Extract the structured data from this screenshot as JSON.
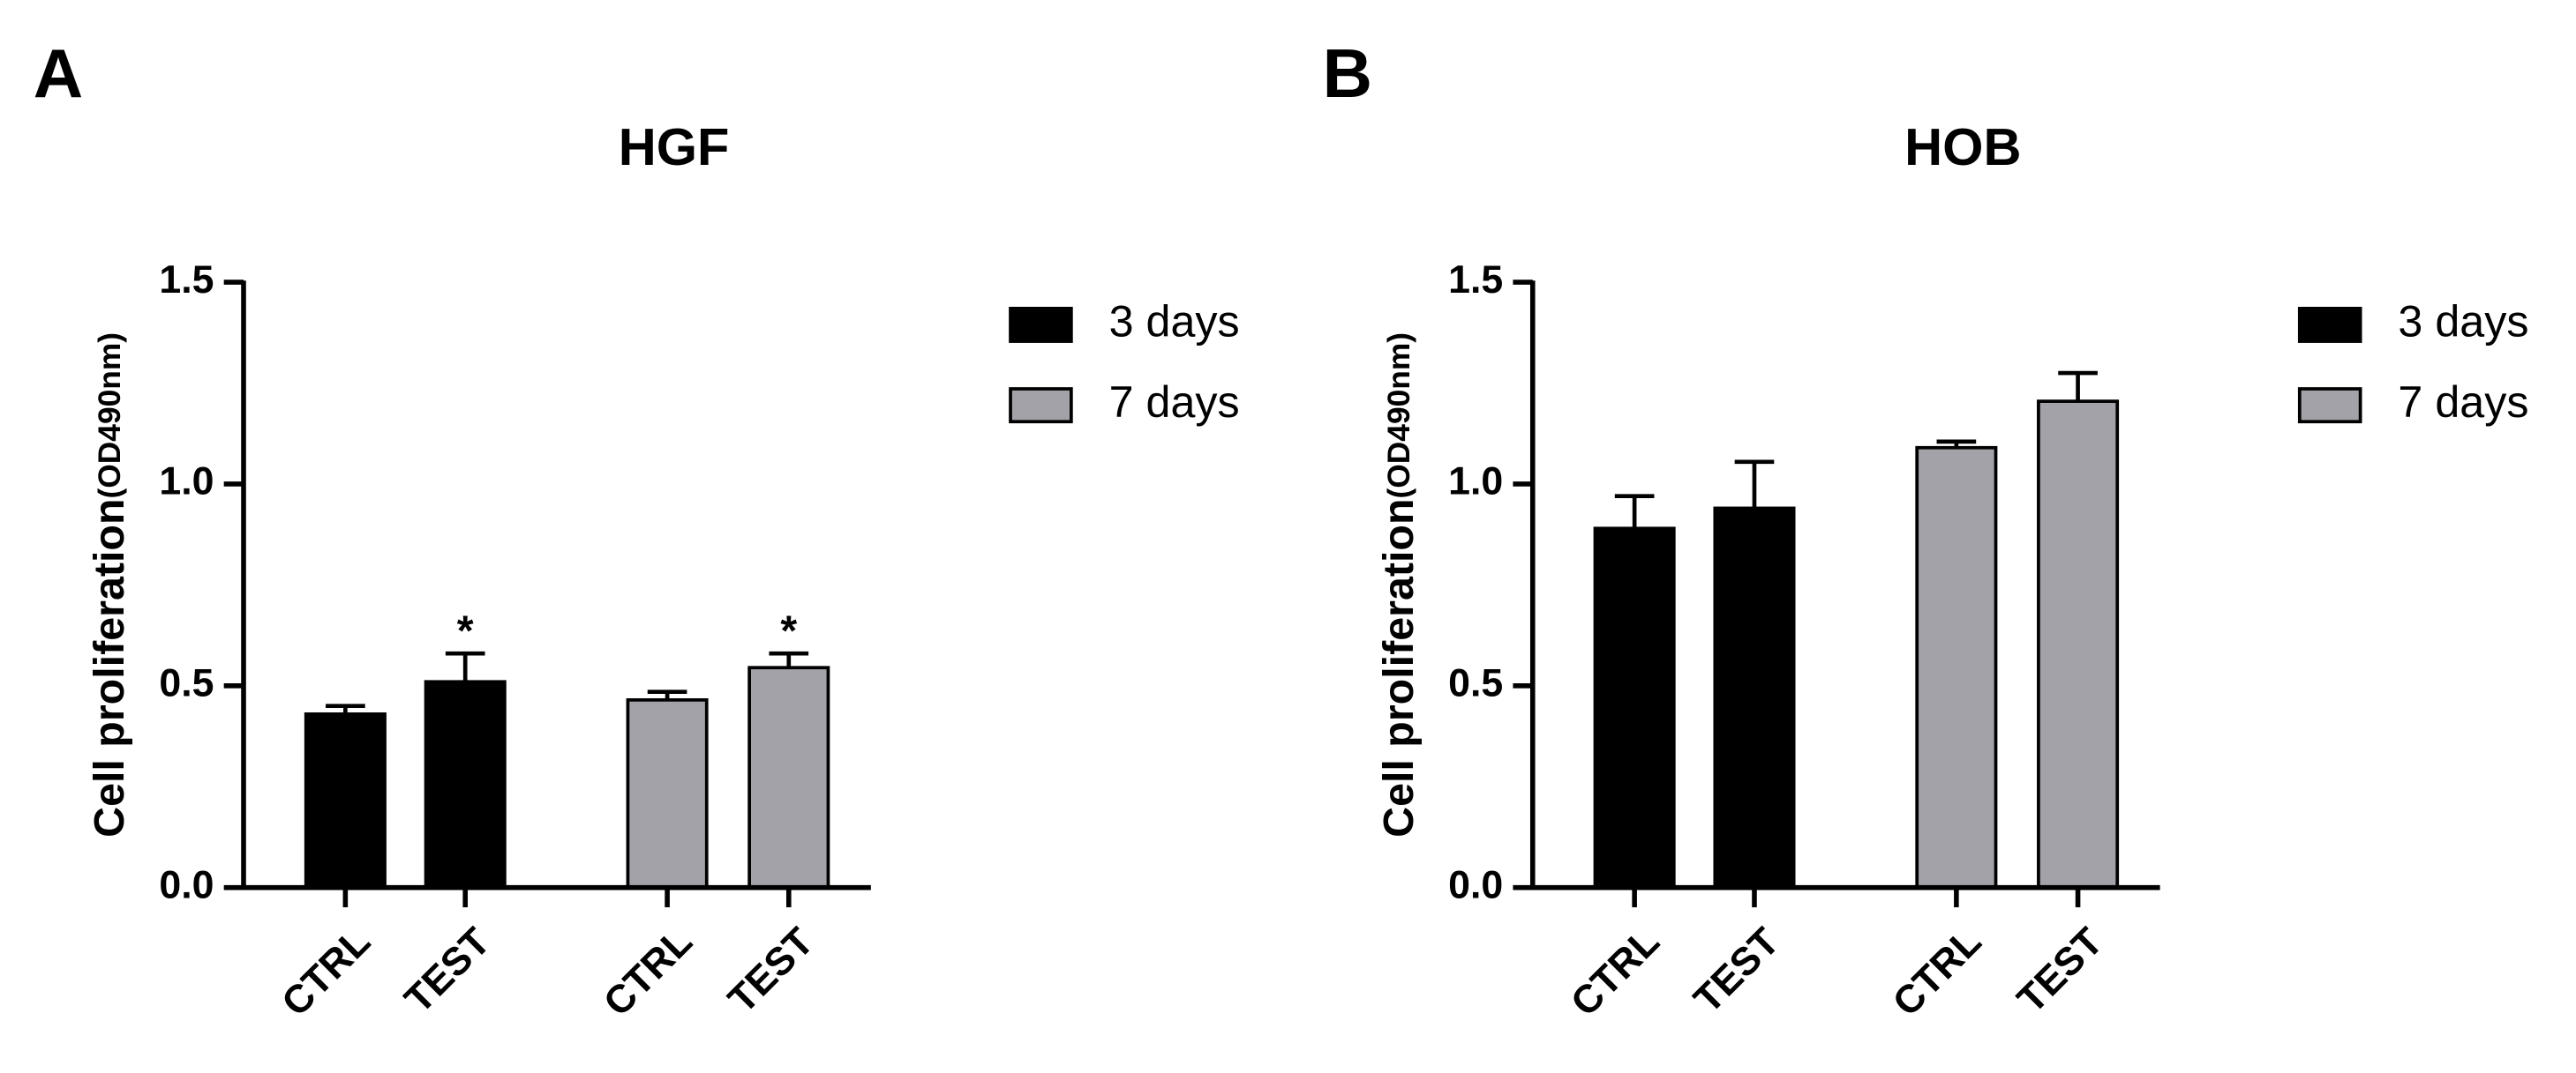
{
  "chart_data": [
    {
      "type": "bar",
      "panel": "A",
      "title": "HGF",
      "ylabel": "Cell proliferation",
      "ylabel_unit": "(OD490nm)",
      "categories": [
        "CTRL",
        "TEST",
        "CTRL",
        "TEST"
      ],
      "series": [
        {
          "name": "3 days",
          "color": "#000000",
          "values": [
            0.43,
            0.51,
            null,
            null
          ],
          "errors": [
            0.02,
            0.07,
            null,
            null
          ]
        },
        {
          "name": "7 days",
          "color": "#a3a2a8",
          "values": [
            null,
            null,
            0.465,
            0.545
          ],
          "errors": [
            null,
            null,
            0.02,
            0.035
          ]
        }
      ],
      "annotations": [
        null,
        "*",
        null,
        "*"
      ],
      "ylim": [
        0,
        1.5
      ],
      "yticks": [
        {
          "value": 0,
          "label": "0.0"
        },
        {
          "value": 0.5,
          "label": "0.5"
        },
        {
          "value": 1,
          "label": "1.0"
        },
        {
          "value": 1.5,
          "label": "1.5"
        }
      ]
    },
    {
      "type": "bar",
      "panel": "B",
      "title": "HOB",
      "ylabel": "Cell proliferation",
      "ylabel_unit": "(OD490nm)",
      "categories": [
        "CTRL",
        "TEST",
        "CTRL",
        "TEST"
      ],
      "series": [
        {
          "name": "3 days",
          "color": "#000000",
          "values": [
            0.89,
            0.94,
            null,
            null
          ],
          "errors": [
            0.08,
            0.115,
            null,
            null
          ]
        },
        {
          "name": "7 days",
          "color": "#a3a2a8",
          "values": [
            null,
            null,
            1.09,
            1.205
          ],
          "errors": [
            null,
            null,
            0.015,
            0.07
          ]
        }
      ],
      "ylim": [
        0,
        1.5
      ],
      "yticks": [
        {
          "value": 0,
          "label": "0.0"
        },
        {
          "value": 0.5,
          "label": "0.5"
        },
        {
          "value": 1,
          "label": "1.0"
        },
        {
          "value": 1.5,
          "label": "1.5"
        }
      ]
    }
  ]
}
